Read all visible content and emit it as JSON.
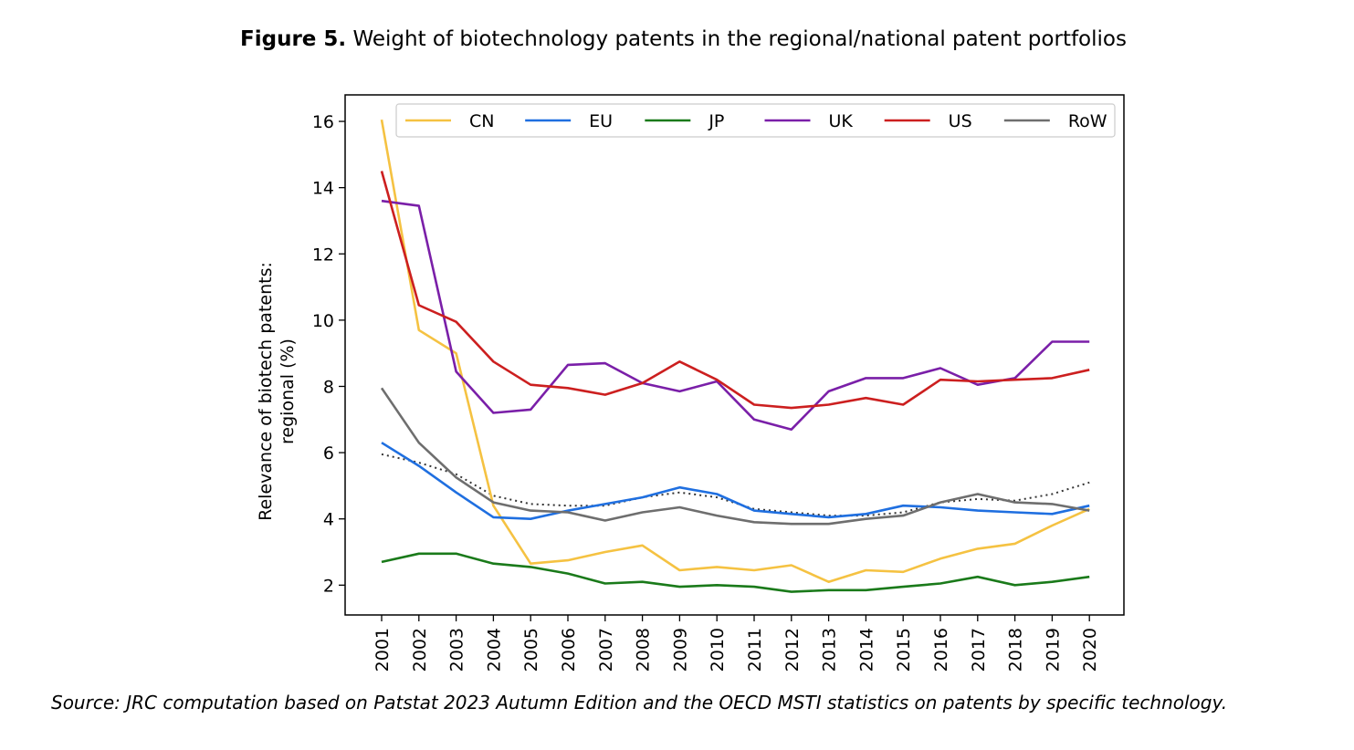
{
  "figure": {
    "number_label": "Figure 5.",
    "title": "Weight of biotechnology patents in the regional/national patent portfolios"
  },
  "source_note": "Source: JRC computation based on Patstat 2023 Autumn Edition and the OECD MSTI statistics on patents by specific technology.",
  "chart_data": {
    "type": "line",
    "xlabel": "",
    "ylabel_lines": [
      "Relevance of biotech patents:",
      "regional (%)"
    ],
    "ylim": [
      1.1,
      16.8
    ],
    "yticks": [
      2,
      4,
      6,
      8,
      10,
      12,
      14,
      16
    ],
    "x": [
      "2001",
      "2002",
      "2003",
      "2004",
      "2005",
      "2006",
      "2007",
      "2008",
      "2009",
      "2010",
      "2011",
      "2012",
      "2013",
      "2014",
      "2015",
      "2016",
      "2017",
      "2018",
      "2019",
      "2020"
    ],
    "grid": false,
    "legend_placement": "top",
    "series": [
      {
        "name": "CN",
        "color": "#F5C242",
        "style": "solid",
        "values": [
          16.05,
          9.7,
          9.0,
          4.4,
          2.65,
          2.75,
          3.0,
          3.2,
          2.45,
          2.55,
          2.45,
          2.6,
          2.1,
          2.45,
          2.4,
          2.8,
          3.1,
          3.25,
          3.8,
          4.3
        ]
      },
      {
        "name": "EU",
        "color": "#1F6FE0",
        "style": "solid",
        "values": [
          6.3,
          5.6,
          4.8,
          4.05,
          4.0,
          4.25,
          4.45,
          4.65,
          4.95,
          4.75,
          4.25,
          4.15,
          4.05,
          4.15,
          4.4,
          4.35,
          4.25,
          4.2,
          4.15,
          4.4
        ]
      },
      {
        "name": "JP",
        "color": "#1A7A1A",
        "style": "solid",
        "values": [
          2.7,
          2.95,
          2.95,
          2.65,
          2.55,
          2.35,
          2.05,
          2.1,
          1.95,
          2.0,
          1.95,
          1.8,
          1.85,
          1.85,
          1.95,
          2.05,
          2.25,
          2.0,
          2.1,
          2.25
        ]
      },
      {
        "name": "UK",
        "color": "#7A1FA8",
        "style": "solid",
        "values": [
          13.6,
          13.45,
          8.45,
          7.2,
          7.3,
          8.65,
          8.7,
          8.1,
          7.85,
          8.15,
          7.0,
          6.7,
          7.85,
          8.25,
          8.25,
          8.55,
          8.05,
          8.25,
          9.35,
          9.35
        ]
      },
      {
        "name": "US",
        "color": "#CC1F1F",
        "style": "solid",
        "values": [
          14.5,
          10.45,
          9.95,
          8.75,
          8.05,
          7.95,
          7.75,
          8.1,
          8.75,
          8.2,
          7.45,
          7.35,
          7.45,
          7.65,
          7.45,
          8.2,
          8.15,
          8.2,
          8.25,
          8.5
        ]
      },
      {
        "name": "RoW",
        "color": "#6E6E6E",
        "style": "solid",
        "values": [
          7.95,
          6.3,
          5.25,
          4.5,
          4.25,
          4.2,
          3.95,
          4.2,
          4.35,
          4.1,
          3.9,
          3.85,
          3.85,
          4.0,
          4.1,
          4.5,
          4.75,
          4.5,
          4.45,
          4.25
        ]
      },
      {
        "style": "dotted",
        "color": "#333333",
        "values": [
          5.95,
          5.7,
          5.35,
          4.7,
          4.45,
          4.4,
          4.4,
          4.65,
          4.8,
          4.65,
          4.3,
          4.2,
          4.1,
          4.1,
          4.2,
          4.5,
          4.6,
          4.55,
          4.75,
          5.1
        ]
      }
    ]
  }
}
